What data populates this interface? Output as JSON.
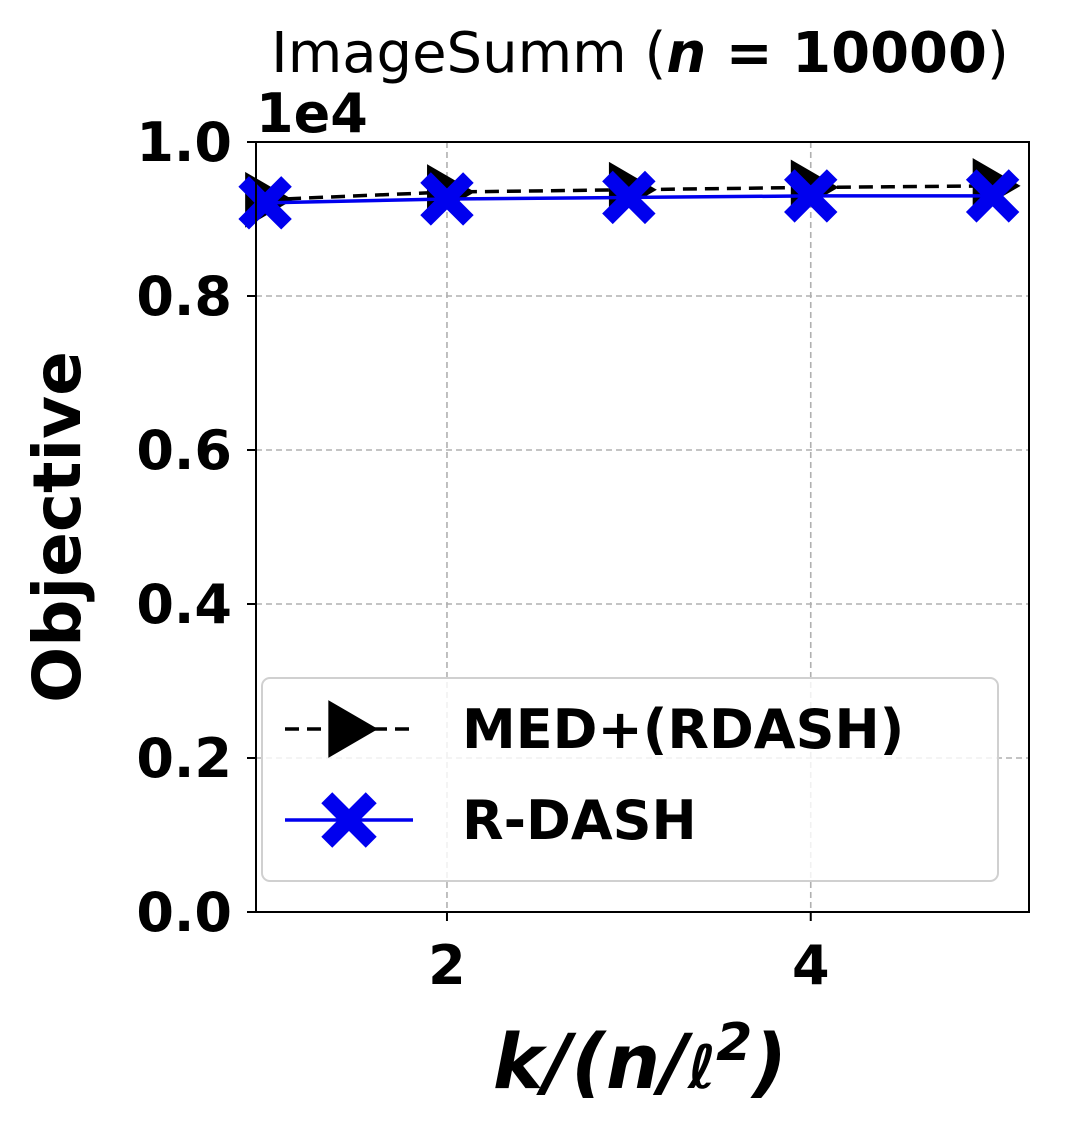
{
  "chart_data": {
    "type": "line",
    "title_prefix": "ImageSumm (",
    "title_var": "n",
    "title_eq": " = 10000",
    "title_suffix": ")",
    "xlabel_parts": [
      "k/(n/",
      "ℓ",
      "2",
      ")"
    ],
    "ylabel": "Objective",
    "y_offset_label": "1e4",
    "x": [
      1,
      2,
      3,
      4,
      5
    ],
    "xlim": [
      0.95,
      5.2
    ],
    "ylim": [
      0.0,
      1.0
    ],
    "xticks": [
      2,
      4
    ],
    "xtick_labels": [
      "2",
      "4"
    ],
    "yticks": [
      0.0,
      0.2,
      0.4,
      0.6,
      0.8,
      1.0
    ],
    "ytick_labels": [
      "0.0",
      "0.2",
      "0.4",
      "0.6",
      "0.8",
      "1.0"
    ],
    "grid": true,
    "legend_position": "lower-left",
    "series": [
      {
        "name": "MED+(RDASH)",
        "values": [
          0.925,
          0.935,
          0.938,
          0.941,
          0.943
        ],
        "color": "#000000",
        "line_style": "dashed",
        "marker": "triangle-right"
      },
      {
        "name": "R-DASH",
        "values": [
          0.921,
          0.926,
          0.928,
          0.93,
          0.93
        ],
        "color": "#0000ee",
        "line_style": "solid",
        "marker": "x-filled"
      }
    ]
  }
}
